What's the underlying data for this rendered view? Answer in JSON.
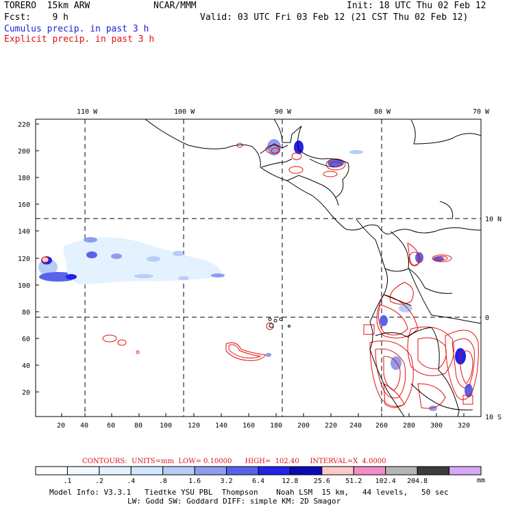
{
  "header": {
    "model_name": "TORERO  15km ARW",
    "org": "NCAR/MMM",
    "init": "Init: 18 UTC Thu 02 Feb 12",
    "fcst": "Fcst:    9 h",
    "valid": "Valid: 03 UTC Fri 03 Feb 12 (21 CST Thu 02 Feb 12)",
    "cumulus_label": "Cumulus precip. in past 3 h",
    "explicit_label": "Explicit precip. in past 3 h"
  },
  "map": {
    "top_labels": [
      "110 W",
      "100 W",
      "90 W",
      "80 W",
      "70 W"
    ],
    "right_labels": [
      "10 N",
      "0",
      "10 S"
    ],
    "y_ticks": [
      "220",
      "200",
      "180",
      "160",
      "140",
      "120",
      "100",
      "80",
      "60",
      "40",
      "20"
    ],
    "x_ticks": [
      "20",
      "40",
      "60",
      "80",
      "100",
      "120",
      "140",
      "160",
      "180",
      "200",
      "220",
      "240",
      "260",
      "280",
      "300",
      "320"
    ],
    "colors": {
      "cumulus": "#2020d0",
      "explicit": "#e01010",
      "coast": "#000000"
    }
  },
  "legend": {
    "contours_line": "CONTOURS:  UNITS=mm  LOW= 0.10000      HIGH=  102.40     INTERVAL=X  4.0000",
    "bins": [
      {
        "label": ".1",
        "color": "#ffffff"
      },
      {
        "label": ".2",
        "color": "#f2f8ff"
      },
      {
        "label": ".4",
        "color": "#e4f1ff"
      },
      {
        "label": ".8",
        "color": "#d2e6ff"
      },
      {
        "label": "1.6",
        "color": "#b7cdf6"
      },
      {
        "label": "3.2",
        "color": "#8f9cf0"
      },
      {
        "label": "6.4",
        "color": "#5863ea"
      },
      {
        "label": "12.8",
        "color": "#2222e8"
      },
      {
        "label": "25.6",
        "color": "#0a0ab4"
      },
      {
        "label": "51.2",
        "color": "#fbc9c9"
      },
      {
        "label": "102.4",
        "color": "#f48cc8"
      },
      {
        "label": "204.8",
        "color": "#b4b4b4"
      },
      {
        "label": "",
        "color": "#3c3c3c"
      },
      {
        "label": "",
        "color": "#d8a6f6"
      }
    ],
    "unit": "mm"
  },
  "model_info": {
    "line1": "Model Info: V3.3.1   Tiedtke YSU PBL  Thompson    Noah LSM  15 km,   44 levels,   50 sec",
    "line2": "LW: Godd SW: Goddard DIFF: simple KM: 2D Smagor"
  }
}
